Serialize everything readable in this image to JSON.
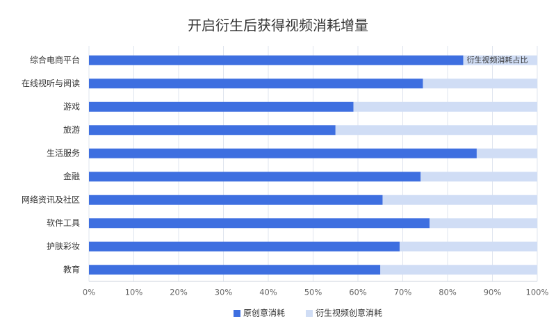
{
  "chart_data": {
    "type": "stacked-bar-horizontal",
    "title": "开启衍生后获得视频消耗增量",
    "categories": [
      "综合电商平台",
      "在线视听与阅读",
      "游戏",
      "旅游",
      "生活服务",
      "金融",
      "网络资讯及社区",
      "软件工具",
      "护肤彩妆",
      "教育"
    ],
    "series": [
      {
        "name": "原创意消耗",
        "color": "#3e6fe0",
        "values": [
          83.5,
          74.5,
          59,
          55,
          86.5,
          74,
          65.5,
          76,
          69.3,
          65
        ]
      },
      {
        "name": "衍生视频创意消耗",
        "color": "#d0ddf5",
        "values": [
          16.5,
          25.5,
          41,
          45,
          13.5,
          26,
          34.5,
          24,
          30.7,
          35
        ]
      }
    ],
    "annotation": "衍生视频消耗占比",
    "xlim": [
      0,
      100
    ],
    "xticks": [
      {
        "value": 0,
        "label": "0%"
      },
      {
        "value": 10,
        "label": "10%"
      },
      {
        "value": 20,
        "label": "20%"
      },
      {
        "value": 30,
        "label": "30%"
      },
      {
        "value": 40,
        "label": "40%"
      },
      {
        "value": 50,
        "label": "50%"
      },
      {
        "value": 60,
        "label": "60%"
      },
      {
        "value": 70,
        "label": "70%"
      },
      {
        "value": 80,
        "label": "80%"
      },
      {
        "value": 90,
        "label": "90%"
      },
      {
        "value": 100,
        "label": "100%"
      }
    ],
    "grid": true
  }
}
